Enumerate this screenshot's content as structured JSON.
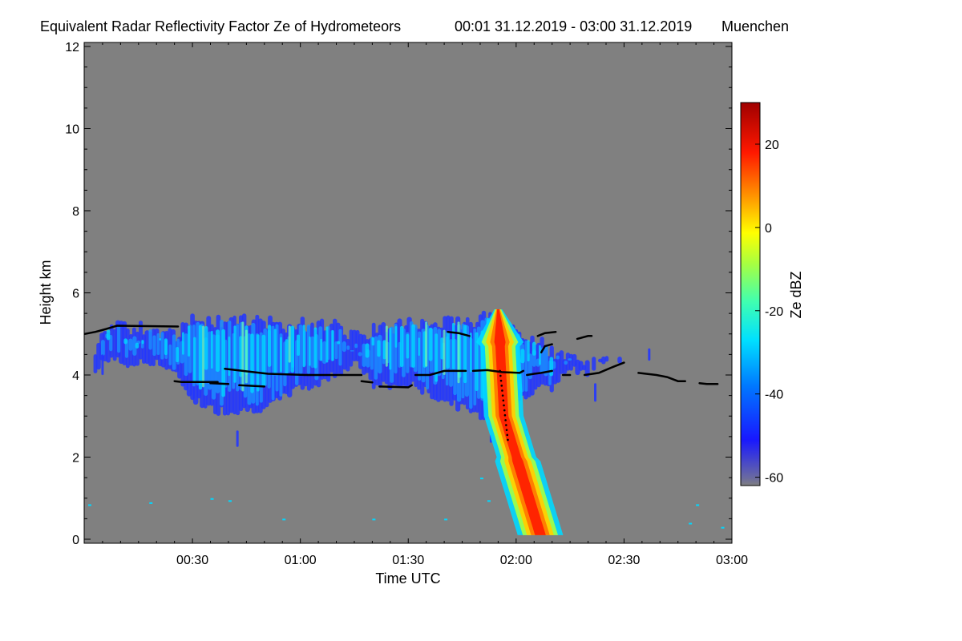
{
  "chart_data": {
    "type": "heatmap",
    "title": "Equivalent Radar Reflectivity Factor Ze of Hydrometeors",
    "period": "00:01 31.12.2019 - 03:00 31.12.2019",
    "location": "Muenchen",
    "xlabel": "Time UTC",
    "ylabel": "Height km",
    "x_range_min": [
      0,
      180
    ],
    "ylim": [
      0,
      12
    ],
    "x_ticks": [
      {
        "value": 30,
        "label": "00:30"
      },
      {
        "value": 60,
        "label": "01:00"
      },
      {
        "value": 90,
        "label": "01:30"
      },
      {
        "value": 120,
        "label": "02:00"
      },
      {
        "value": 150,
        "label": "02:30"
      },
      {
        "value": 180,
        "label": "03:00"
      }
    ],
    "y_ticks": [
      {
        "value": 0,
        "label": "0"
      },
      {
        "value": 2,
        "label": "2"
      },
      {
        "value": 4,
        "label": "4"
      },
      {
        "value": 6,
        "label": "6"
      },
      {
        "value": 8,
        "label": "8"
      },
      {
        "value": 10,
        "label": "10"
      },
      {
        "value": 12,
        "label": "12"
      }
    ],
    "colorbar": {
      "label": "Ze dBZ",
      "range": [
        -62,
        30
      ],
      "ticks": [
        {
          "value": 20,
          "label": "20"
        },
        {
          "value": 0,
          "label": "0"
        },
        {
          "value": -20,
          "label": "-20"
        },
        {
          "value": -40,
          "label": "-40"
        },
        {
          "value": -60,
          "label": "-60"
        }
      ]
    },
    "background_color": "#808080",
    "cloud_layer": {
      "description": "stratiform cloud band with fall streaks",
      "time_range_min": [
        0,
        152
      ],
      "base_km": [
        3.0,
        4.0
      ],
      "top_km": [
        5.0,
        5.6
      ],
      "typical_dBZ": [
        -45,
        -15
      ]
    },
    "precip_shaft": {
      "description": "convective cell reaching ground",
      "time_min": [
        108,
        122
      ],
      "top_km": 5.6,
      "max_dBZ": 25
    },
    "melting_layer_line": {
      "segments": [
        [
          [
            0,
            5.0
          ],
          [
            3,
            5.05
          ],
          [
            6,
            5.12
          ],
          [
            9,
            5.2
          ],
          [
            26,
            5.18
          ]
        ],
        [
          [
            25,
            3.85
          ],
          [
            27,
            3.83
          ],
          [
            37,
            3.83
          ]
        ],
        [
          [
            39,
            4.15
          ],
          [
            44,
            4.1
          ],
          [
            51,
            4.03
          ],
          [
            62,
            4.0
          ],
          [
            77,
            4.0
          ]
        ],
        [
          [
            35,
            3.8
          ],
          [
            40,
            3.78
          ]
        ],
        [
          [
            43,
            3.75
          ],
          [
            50,
            3.72
          ]
        ],
        [
          [
            77,
            3.85
          ],
          [
            80,
            3.82
          ]
        ],
        [
          [
            82,
            3.72
          ],
          [
            90,
            3.7
          ],
          [
            91,
            3.75
          ]
        ],
        [
          [
            92,
            4.0
          ],
          [
            96,
            4.0
          ],
          [
            100,
            4.1
          ],
          [
            106,
            4.1
          ]
        ],
        [
          [
            101,
            5.05
          ],
          [
            104,
            5.02
          ],
          [
            107,
            4.95
          ]
        ],
        [
          [
            108,
            4.1
          ],
          [
            112,
            4.12
          ],
          [
            116,
            4.07
          ],
          [
            121,
            4.05
          ],
          [
            122,
            4.1
          ]
        ],
        [
          [
            123,
            4.0
          ],
          [
            125,
            4.03
          ],
          [
            127,
            4.05
          ],
          [
            130,
            4.1
          ]
        ],
        [
          [
            127,
            4.55
          ],
          [
            128,
            4.7
          ],
          [
            130,
            4.75
          ]
        ],
        [
          [
            126,
            4.95
          ],
          [
            128,
            5.02
          ],
          [
            131,
            5.05
          ]
        ],
        [
          [
            133,
            4.0
          ],
          [
            135,
            4.0
          ]
        ],
        [
          [
            137,
            4.88
          ],
          [
            140,
            4.95
          ],
          [
            141,
            4.95
          ]
        ],
        [
          [
            139,
            4.0
          ],
          [
            143,
            4.05
          ],
          [
            147,
            4.2
          ],
          [
            150,
            4.3
          ]
        ],
        [
          [
            154,
            4.05
          ],
          [
            159,
            4.0
          ],
          [
            162,
            3.95
          ],
          [
            165,
            3.85
          ],
          [
            167,
            3.85
          ]
        ],
        [
          [
            171,
            3.8
          ],
          [
            173,
            3.78
          ],
          [
            176,
            3.78
          ]
        ]
      ]
    }
  }
}
